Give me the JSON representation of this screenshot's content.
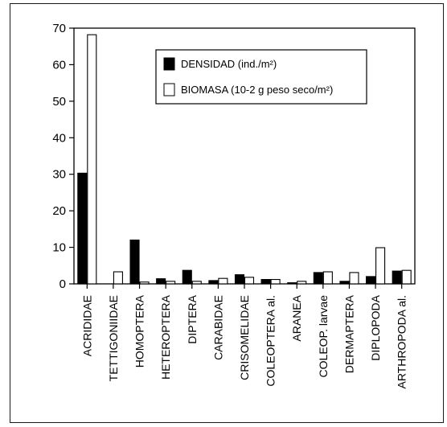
{
  "chart_data": {
    "type": "bar",
    "categories": [
      "ACRIDIDAE",
      "TETTIGONIIDAE",
      "HOMOPTERA",
      "HETEROPTERA",
      "DIPTERA",
      "CARABIDAE",
      "CRISOMELIDAE",
      "COLEOPTERA al.",
      "ARANEA",
      "COLEOP. larvae",
      "DERMAPTERA",
      "DIPLOPODA",
      "ARTHROPODA al."
    ],
    "series": [
      {
        "name": "DENSIDAD  (ind./m²)",
        "color": "#000000",
        "values": [
          30.3,
          0,
          12.0,
          1.4,
          3.7,
          0.9,
          2.5,
          1.2,
          0.3,
          3.1,
          0.7,
          2.0,
          3.5
        ]
      },
      {
        "name": "BIOMASA (10-2 g peso seco/m²)",
        "color": "#ffffff",
        "values": [
          68.2,
          3.3,
          0.5,
          0.7,
          0.7,
          1.5,
          1.8,
          1.2,
          0.7,
          3.3,
          3.1,
          9.9,
          3.7
        ]
      }
    ],
    "yticks": [
      0,
      10,
      20,
      30,
      40,
      50,
      60,
      70
    ],
    "ylim": [
      0,
      70
    ],
    "grid": false,
    "legend": "top-right"
  }
}
